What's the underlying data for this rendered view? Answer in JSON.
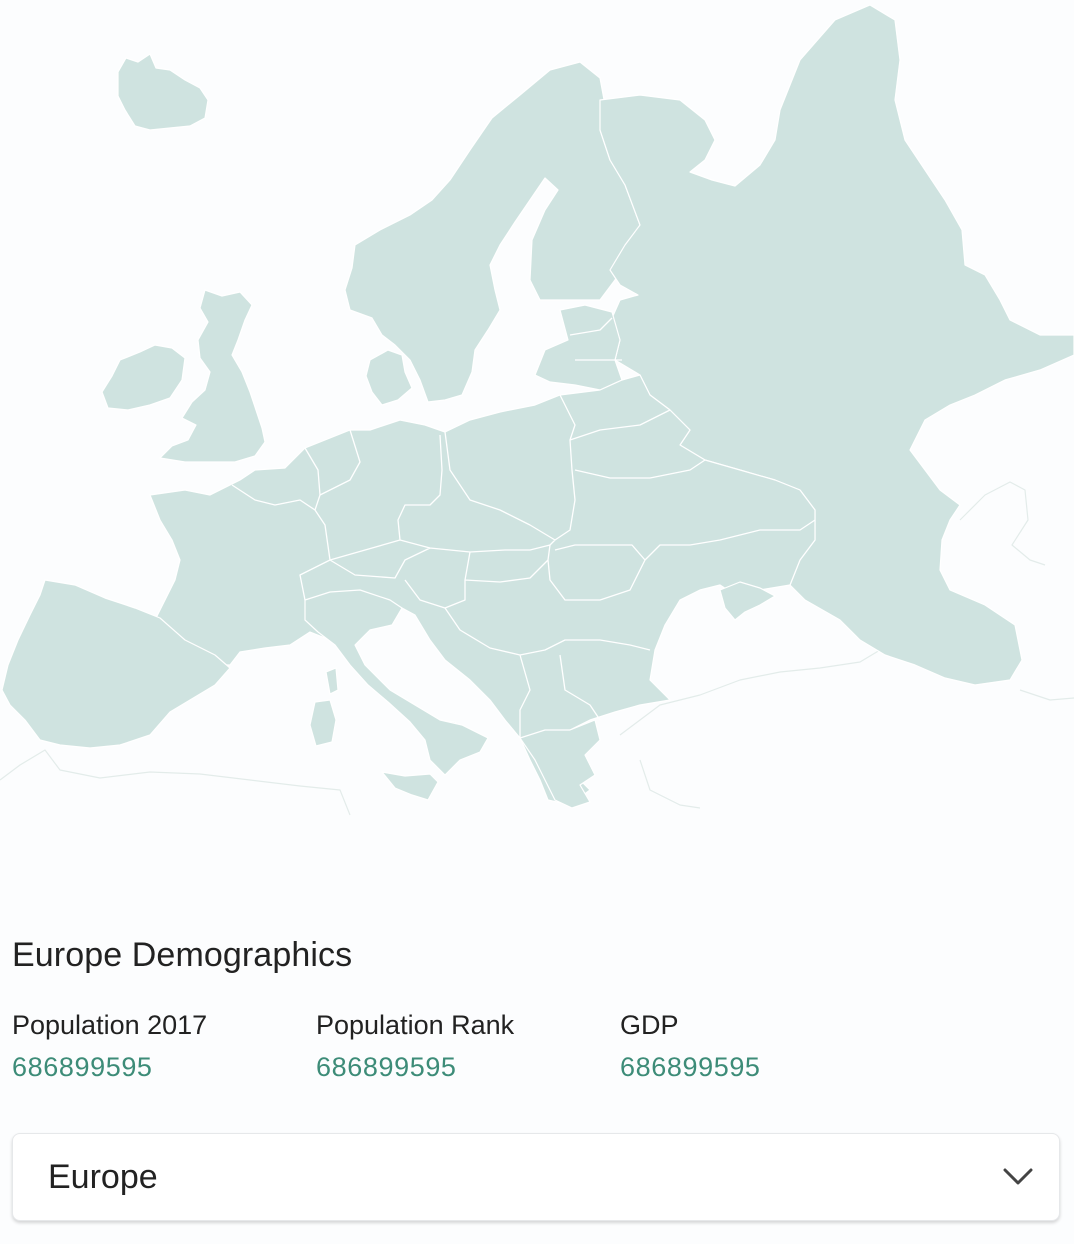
{
  "map": {
    "region": "Europe",
    "land_color": "#cfe3e0",
    "border_color": "#ffffff"
  },
  "demographics": {
    "title": "Europe Demographics",
    "stats": [
      {
        "label": "Population 2017",
        "value": "686899595"
      },
      {
        "label": "Population Rank",
        "value": "686899595"
      },
      {
        "label": "GDP",
        "value": "686899595"
      }
    ],
    "value_color": "#3d8c78"
  },
  "selector": {
    "selected": "Europe",
    "icon": "chevron-down-icon"
  }
}
